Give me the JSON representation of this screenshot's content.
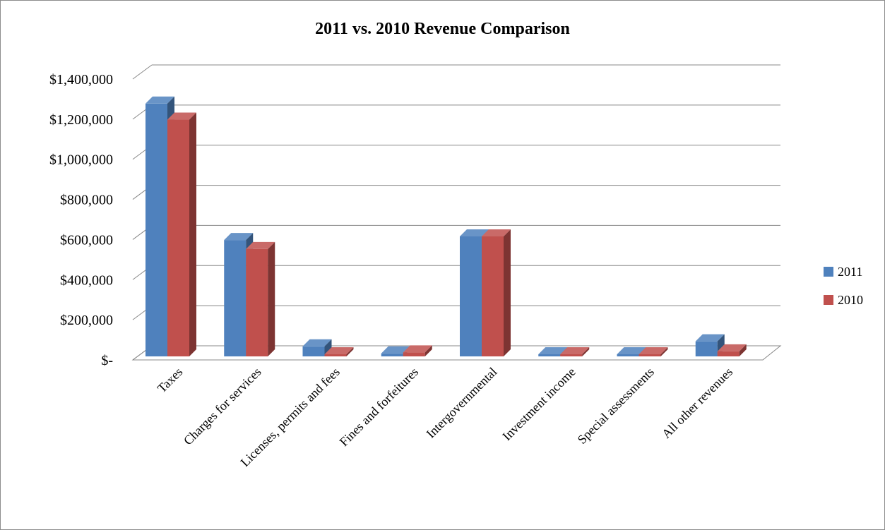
{
  "chart_data": {
    "type": "bar",
    "title": "2011 vs. 2010 Revenue Comparison",
    "xlabel": "",
    "ylabel": "",
    "ylim": [
      0,
      1400000
    ],
    "y_tick_labels": [
      "$-",
      "$200,000",
      "$400,000",
      "$600,000",
      "$800,000",
      "$1,000,000",
      "$1,200,000",
      "$1,400,000"
    ],
    "categories": [
      "Taxes",
      "Charges for services",
      "Licenses, permits and fees",
      "Fines and forfeitures",
      "Intergovernmental",
      "Investment income",
      "Special assessments",
      "All other revenues"
    ],
    "series": [
      {
        "name": "2011",
        "color": "#4f81bd",
        "values": [
          1260000,
          580000,
          50000,
          15000,
          598000,
          3000,
          3000,
          75000
        ]
      },
      {
        "name": "2010",
        "color": "#c0504d",
        "values": [
          1180000,
          535000,
          8000,
          20000,
          598000,
          3000,
          3000,
          25000
        ]
      }
    ],
    "grid": true,
    "legend_position": "right",
    "style": "3d-clustered-column"
  }
}
